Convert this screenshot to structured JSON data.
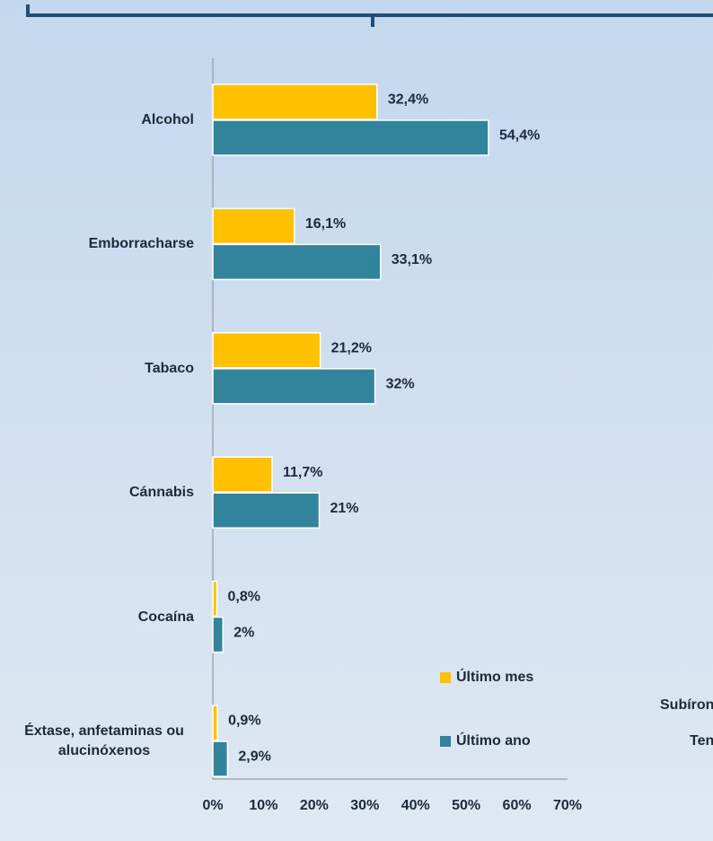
{
  "chart_data": {
    "type": "bar",
    "orientation": "horizontal",
    "categories": [
      "Alcohol",
      "Emborracharse",
      "Tabaco",
      "Cánnabis",
      "Cocaína",
      "Éxtase, anfetaminas ou alucinóxenos"
    ],
    "series": [
      {
        "name": "Último mes",
        "color": "#FFC000",
        "values": [
          32.4,
          16.1,
          21.2,
          11.7,
          0.8,
          0.9
        ],
        "value_labels": [
          "32,4%",
          "16,1%",
          "21,2%",
          "11,7%",
          "0,8%",
          "0,9%"
        ]
      },
      {
        "name": "Último ano",
        "color": "#31849B",
        "values": [
          54.4,
          33.1,
          32,
          21,
          2,
          2.9
        ],
        "value_labels": [
          "54,4%",
          "33,1%",
          "32%",
          "21%",
          "2%",
          "2,9%"
        ]
      }
    ],
    "xlim": [
      0,
      70
    ],
    "xticks": [
      {
        "value": 0,
        "label": "0%"
      },
      {
        "value": 10,
        "label": "10%"
      },
      {
        "value": 20,
        "label": "20%"
      },
      {
        "value": 30,
        "label": "30%"
      },
      {
        "value": 40,
        "label": "40%"
      },
      {
        "value": 50,
        "label": "50%"
      },
      {
        "value": 60,
        "label": "60%"
      },
      {
        "value": 70,
        "label": "70%"
      }
    ],
    "grid": false
  },
  "side_texts": [
    "Subíron",
    "Ten"
  ]
}
